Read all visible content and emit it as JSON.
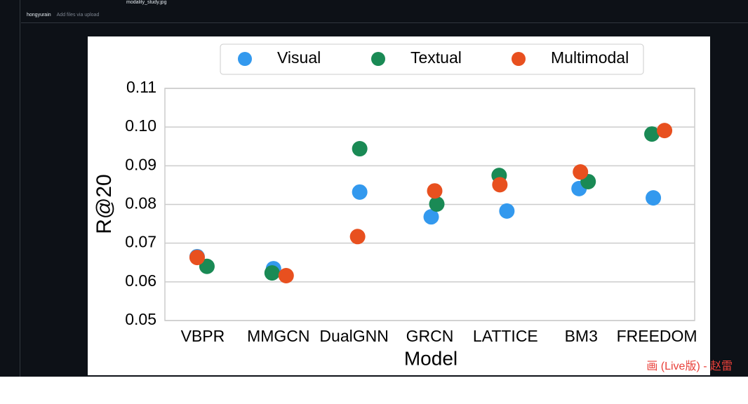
{
  "page": {
    "commit_author": "hongyurain",
    "commit_message": "Add files via upload",
    "file_name": "modality_study.jpg",
    "watermark": "画 (Live版) - 赵雷"
  },
  "chart_data": {
    "type": "strip",
    "xlabel": "Model",
    "ylabel": "R@20",
    "categories": [
      "VBPR",
      "MMGCN",
      "DualGNN",
      "GRCN",
      "LATTICE",
      "BM3",
      "FREEDOM"
    ],
    "series": [
      {
        "name": "Visual",
        "color": "#3399ee",
        "values": [
          0.0665,
          0.0634,
          0.0832,
          0.0768,
          0.0783,
          0.0841,
          0.0817
        ]
      },
      {
        "name": "Textual",
        "color": "#1a8a55",
        "values": [
          0.064,
          0.0623,
          0.0944,
          0.0801,
          0.0875,
          0.0859,
          0.0982
        ]
      },
      {
        "name": "Multimodal",
        "color": "#e8501f",
        "values": [
          0.0663,
          0.0616,
          0.0717,
          0.0835,
          0.0851,
          0.0884,
          0.0991
        ]
      }
    ],
    "ylim": [
      0.05,
      0.11
    ],
    "yticks": [
      0.05,
      0.06,
      0.07,
      0.08,
      0.09,
      {
        "value": 0.1,
        "label": "0.10"
      },
      0.11
    ],
    "grid": true,
    "legend": "top"
  }
}
